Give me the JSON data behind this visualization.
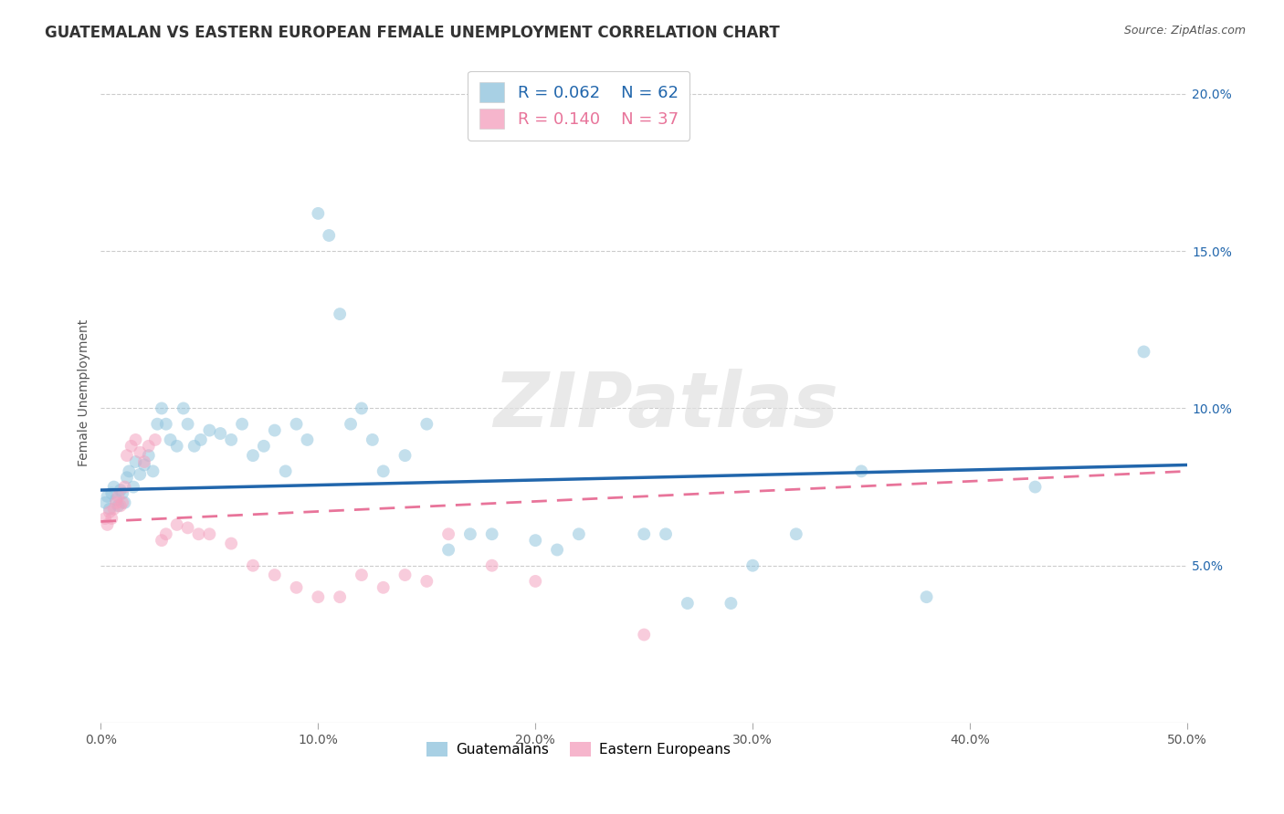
{
  "title": "GUATEMALAN VS EASTERN EUROPEAN FEMALE UNEMPLOYMENT CORRELATION CHART",
  "source": "Source: ZipAtlas.com",
  "ylabel": "Female Unemployment",
  "xlim": [
    0.0,
    0.5
  ],
  "ylim": [
    0.0,
    0.21
  ],
  "xticks": [
    0.0,
    0.1,
    0.2,
    0.3,
    0.4,
    0.5
  ],
  "xticklabels": [
    "0.0%",
    "10.0%",
    "20.0%",
    "30.0%",
    "40.0%",
    "50.0%"
  ],
  "yticks_right": [
    0.05,
    0.1,
    0.15,
    0.2
  ],
  "yticklabels_right": [
    "5.0%",
    "10.0%",
    "15.0%",
    "20.0%"
  ],
  "watermark": "ZIPatlas",
  "legend_entries": [
    {
      "label": "Guatemalans",
      "R": "0.062",
      "N": "62",
      "color": "#92c5de"
    },
    {
      "label": "Eastern Europeans",
      "R": "0.140",
      "N": "37",
      "color": "#f4a3c0"
    }
  ],
  "guatemalan_x": [
    0.002,
    0.003,
    0.004,
    0.005,
    0.006,
    0.007,
    0.008,
    0.009,
    0.01,
    0.011,
    0.012,
    0.013,
    0.015,
    0.016,
    0.018,
    0.02,
    0.022,
    0.024,
    0.026,
    0.028,
    0.03,
    0.032,
    0.035,
    0.038,
    0.04,
    0.043,
    0.046,
    0.05,
    0.055,
    0.06,
    0.065,
    0.07,
    0.075,
    0.08,
    0.085,
    0.09,
    0.095,
    0.1,
    0.105,
    0.11,
    0.115,
    0.12,
    0.125,
    0.13,
    0.14,
    0.15,
    0.16,
    0.17,
    0.18,
    0.2,
    0.21,
    0.22,
    0.25,
    0.26,
    0.27,
    0.29,
    0.3,
    0.32,
    0.35,
    0.38,
    0.43,
    0.48
  ],
  "guatemalan_y": [
    0.07,
    0.072,
    0.068,
    0.073,
    0.075,
    0.071,
    0.069,
    0.074,
    0.073,
    0.07,
    0.078,
    0.08,
    0.075,
    0.083,
    0.079,
    0.082,
    0.085,
    0.08,
    0.095,
    0.1,
    0.095,
    0.09,
    0.088,
    0.1,
    0.095,
    0.088,
    0.09,
    0.093,
    0.092,
    0.09,
    0.095,
    0.085,
    0.088,
    0.093,
    0.08,
    0.095,
    0.09,
    0.162,
    0.155,
    0.13,
    0.095,
    0.1,
    0.09,
    0.08,
    0.085,
    0.095,
    0.055,
    0.06,
    0.06,
    0.058,
    0.055,
    0.06,
    0.06,
    0.06,
    0.038,
    0.038,
    0.05,
    0.06,
    0.08,
    0.04,
    0.075,
    0.118
  ],
  "eastern_x": [
    0.002,
    0.003,
    0.004,
    0.005,
    0.006,
    0.007,
    0.008,
    0.009,
    0.01,
    0.011,
    0.012,
    0.014,
    0.016,
    0.018,
    0.02,
    0.022,
    0.025,
    0.028,
    0.03,
    0.035,
    0.04,
    0.045,
    0.05,
    0.06,
    0.07,
    0.08,
    0.09,
    0.1,
    0.11,
    0.12,
    0.13,
    0.14,
    0.15,
    0.16,
    0.18,
    0.2,
    0.25
  ],
  "eastern_y": [
    0.065,
    0.063,
    0.067,
    0.065,
    0.068,
    0.07,
    0.072,
    0.069,
    0.07,
    0.075,
    0.085,
    0.088,
    0.09,
    0.086,
    0.083,
    0.088,
    0.09,
    0.058,
    0.06,
    0.063,
    0.062,
    0.06,
    0.06,
    0.057,
    0.05,
    0.047,
    0.043,
    0.04,
    0.04,
    0.047,
    0.043,
    0.047,
    0.045,
    0.06,
    0.05,
    0.045,
    0.028
  ],
  "blue_color": "#92c5de",
  "pink_color": "#f4a3c0",
  "blue_line_color": "#2166ac",
  "pink_line_color": "#e8749a",
  "grid_color": "#cccccc",
  "background_color": "#ffffff",
  "title_fontsize": 12,
  "axis_label_fontsize": 10,
  "tick_fontsize": 10,
  "marker_size": 100,
  "marker_alpha": 0.55
}
